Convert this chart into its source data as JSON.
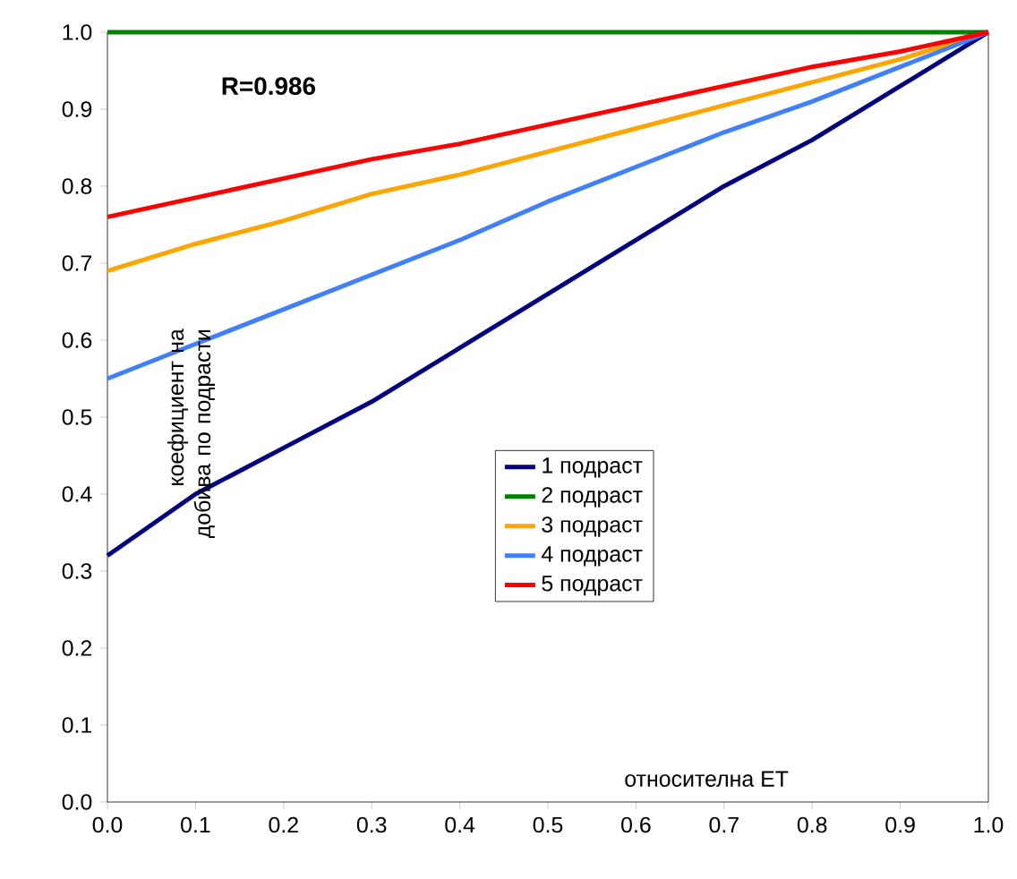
{
  "chart_data": {
    "type": "line",
    "xlabel": "относителна ЕТ",
    "ylabel": "коефициент на добива по подрасти",
    "annotations": [
      "R=0.986"
    ],
    "x": [
      0,
      0.1,
      0.2,
      0.3,
      0.4,
      0.5,
      0.6,
      0.7,
      0.8,
      0.9,
      1.0
    ],
    "series": [
      {
        "name": "1 подраст",
        "color": "#000080",
        "values": [
          0.32,
          0.4,
          0.46,
          0.52,
          0.59,
          0.66,
          0.73,
          0.8,
          0.86,
          0.93,
          1.0
        ]
      },
      {
        "name": "2 подраст",
        "color": "#008000",
        "values": [
          1.0,
          1.0,
          1.0,
          1.0,
          1.0,
          1.0,
          1.0,
          1.0,
          1.0,
          1.0,
          1.0
        ]
      },
      {
        "name": "3 подраст",
        "color": "#ffa500",
        "values": [
          0.69,
          0.725,
          0.755,
          0.79,
          0.815,
          0.845,
          0.875,
          0.905,
          0.935,
          0.965,
          1.0
        ]
      },
      {
        "name": "4 подраст",
        "color": "#4080ff",
        "values": [
          0.55,
          0.595,
          0.64,
          0.685,
          0.73,
          0.78,
          0.825,
          0.87,
          0.91,
          0.955,
          1.0
        ]
      },
      {
        "name": "5 подраст",
        "color": "#ff0000",
        "values": [
          0.76,
          0.785,
          0.81,
          0.835,
          0.855,
          0.88,
          0.905,
          0.93,
          0.955,
          0.975,
          1.0
        ]
      }
    ],
    "xlim": [
      0,
      1
    ],
    "ylim": [
      0,
      1
    ],
    "xticks": [
      {
        "value": 0,
        "label": "0.0"
      },
      {
        "value": 0.1,
        "label": "0.1"
      },
      {
        "value": 0.2,
        "label": "0.2"
      },
      {
        "value": 0.3,
        "label": "0.3"
      },
      {
        "value": 0.4,
        "label": "0.4"
      },
      {
        "value": 0.5,
        "label": "0.5"
      },
      {
        "value": 0.6,
        "label": "0.6"
      },
      {
        "value": 0.7,
        "label": "0.7"
      },
      {
        "value": 0.8,
        "label": "0.8"
      },
      {
        "value": 0.9,
        "label": "0.9"
      },
      {
        "value": 1,
        "label": "1.0"
      }
    ],
    "yticks": [
      {
        "value": 0,
        "label": "0.0"
      },
      {
        "value": 0.1,
        "label": "0.1"
      },
      {
        "value": 0.2,
        "label": "0.2"
      },
      {
        "value": 0.3,
        "label": "0.3"
      },
      {
        "value": 0.4,
        "label": "0.4"
      },
      {
        "value": 0.5,
        "label": "0.5"
      },
      {
        "value": 0.6,
        "label": "0.6"
      },
      {
        "value": 0.7,
        "label": "0.7"
      },
      {
        "value": 0.8,
        "label": "0.8"
      },
      {
        "value": 0.9,
        "label": "0.9"
      },
      {
        "value": 1,
        "label": "1.0"
      }
    ],
    "grid": false,
    "legend": "center",
    "marker": "none",
    "line_style": "solid"
  }
}
